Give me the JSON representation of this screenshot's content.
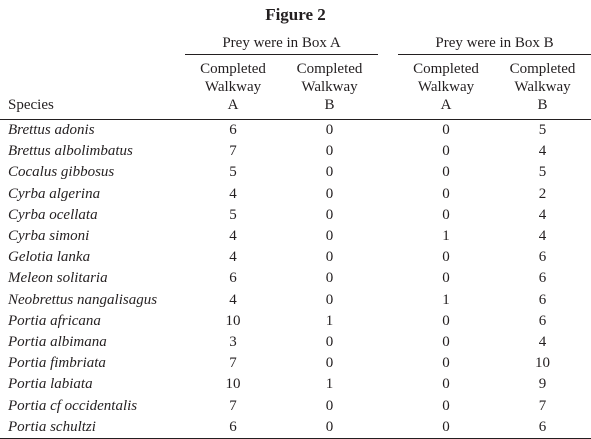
{
  "title": "Figure 2",
  "table": {
    "groups": [
      "Prey were in Box A",
      "Prey were in Box B"
    ],
    "columns": [
      "Species",
      "Completed Walkway A",
      "Completed Walkway B",
      "Completed Walkway A",
      "Completed Walkway B"
    ],
    "rows": [
      [
        "Brettus adonis",
        6,
        0,
        0,
        5
      ],
      [
        "Brettus albolimbatus",
        7,
        0,
        0,
        4
      ],
      [
        "Cocalus gibbosus",
        5,
        0,
        0,
        5
      ],
      [
        "Cyrba algerina",
        4,
        0,
        0,
        2
      ],
      [
        "Cyrba ocellata",
        5,
        0,
        0,
        4
      ],
      [
        "Cyrba simoni",
        4,
        0,
        1,
        4
      ],
      [
        "Gelotia lanka",
        4,
        0,
        0,
        6
      ],
      [
        "Meleon solitaria",
        6,
        0,
        0,
        6
      ],
      [
        "Neobrettus nangalisagus",
        4,
        0,
        1,
        6
      ],
      [
        "Portia africana",
        10,
        1,
        0,
        6
      ],
      [
        "Portia albimana",
        3,
        0,
        0,
        4
      ],
      [
        "Portia fimbriata",
        7,
        0,
        0,
        10
      ],
      [
        "Portia labiata",
        10,
        1,
        0,
        9
      ],
      [
        "Portia cf occidentalis",
        7,
        0,
        0,
        7
      ],
      [
        "Portia schultzi",
        6,
        0,
        0,
        6
      ]
    ]
  }
}
